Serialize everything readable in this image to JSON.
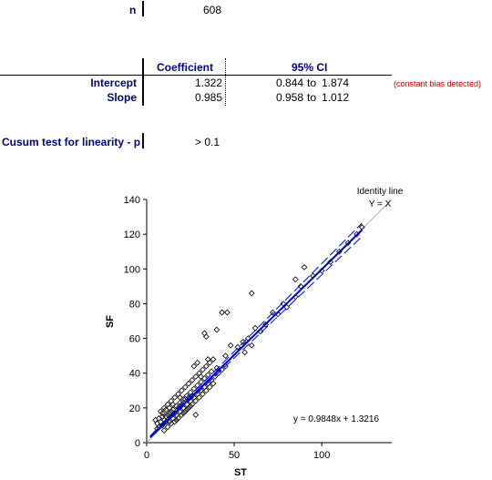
{
  "summary": {
    "n_label": "n",
    "n_value": "608"
  },
  "regression_table": {
    "headers": [
      "Coefficient",
      "95% CI"
    ],
    "rows": [
      {
        "label": "Intercept",
        "coefficient": "1.322",
        "ci_low": "0.844",
        "ci_sep": "to",
        "ci_high": "1.874",
        "note": "(constant bias detected)"
      },
      {
        "label": "Slope",
        "coefficient": "0.985",
        "ci_low": "0.958",
        "ci_sep": "to",
        "ci_high": "1.012",
        "note": ""
      }
    ]
  },
  "cusum": {
    "label": "Cusum test for linearity - p",
    "value": "> 0.1"
  },
  "chart_data": {
    "type": "scatter",
    "xlabel": "ST",
    "ylabel": "SF",
    "xlim": [
      0,
      140
    ],
    "ylim": [
      0,
      140
    ],
    "xticks": [
      0,
      50,
      100
    ],
    "yticks": [
      0,
      20,
      40,
      60,
      80,
      100,
      120,
      140
    ],
    "identity_label_line1": "Identity line",
    "identity_label_line2": "Y = X",
    "equation": "y = 0.9848x + 1.3216",
    "regression": {
      "slope": 0.9848,
      "intercept": 1.3216
    },
    "ci_band": {
      "slope_low": 0.958,
      "slope_high": 1.012,
      "intercept_low": 0.844,
      "intercept_high": 1.874
    },
    "series": [
      {
        "values": [
          [
            5,
            13
          ],
          [
            6,
            8
          ],
          [
            7,
            14
          ],
          [
            8,
            18
          ],
          [
            9,
            10
          ],
          [
            10,
            20
          ],
          [
            10,
            7
          ],
          [
            11,
            15
          ],
          [
            12,
            22
          ],
          [
            12,
            9
          ],
          [
            13,
            17
          ],
          [
            14,
            24
          ],
          [
            14,
            11
          ],
          [
            15,
            19
          ],
          [
            16,
            26
          ],
          [
            16,
            12
          ],
          [
            17,
            21
          ],
          [
            18,
            28
          ],
          [
            18,
            14
          ],
          [
            19,
            23
          ],
          [
            20,
            30
          ],
          [
            20,
            16
          ],
          [
            21,
            25
          ],
          [
            22,
            32
          ],
          [
            22,
            18
          ],
          [
            23,
            27
          ],
          [
            24,
            34
          ],
          [
            24,
            20
          ],
          [
            25,
            29
          ],
          [
            26,
            36
          ],
          [
            26,
            22
          ],
          [
            27,
            31
          ],
          [
            28,
            38
          ],
          [
            28,
            24
          ],
          [
            29,
            33
          ],
          [
            30,
            40
          ],
          [
            30,
            26
          ],
          [
            31,
            35
          ],
          [
            32,
            42
          ],
          [
            32,
            28
          ],
          [
            33,
            37
          ],
          [
            34,
            44
          ],
          [
            34,
            30
          ],
          [
            35,
            39
          ],
          [
            36,
            46
          ],
          [
            36,
            32
          ],
          [
            37,
            41
          ],
          [
            38,
            48
          ],
          [
            38,
            34
          ],
          [
            40,
            43
          ],
          [
            8,
            12
          ],
          [
            9,
            15
          ],
          [
            11,
            12
          ],
          [
            13,
            20
          ],
          [
            15,
            14
          ],
          [
            17,
            16
          ],
          [
            19,
            18
          ],
          [
            21,
            20
          ],
          [
            23,
            22
          ],
          [
            25,
            24
          ],
          [
            27,
            26
          ],
          [
            29,
            28
          ],
          [
            31,
            30
          ],
          [
            33,
            32
          ],
          [
            35,
            34
          ],
          [
            37,
            36
          ],
          [
            39,
            38
          ],
          [
            41,
            40
          ],
          [
            43,
            42
          ],
          [
            45,
            44
          ],
          [
            6,
            11
          ],
          [
            7,
            9
          ],
          [
            9,
            17
          ],
          [
            10,
            13
          ],
          [
            11,
            19
          ],
          [
            12,
            16
          ],
          [
            13,
            12
          ],
          [
            14,
            18
          ],
          [
            15,
            22
          ],
          [
            16,
            17
          ],
          [
            17,
            13
          ],
          [
            18,
            20
          ],
          [
            19,
            26
          ],
          [
            20,
            22
          ],
          [
            21,
            17
          ],
          [
            22,
            25
          ],
          [
            23,
            19
          ],
          [
            24,
            26
          ],
          [
            25,
            21
          ],
          [
            26,
            27
          ],
          [
            28,
            16
          ],
          [
            27,
            44
          ],
          [
            29,
            46
          ],
          [
            31,
            38
          ],
          [
            35,
            48
          ],
          [
            45,
            50
          ],
          [
            48,
            56
          ],
          [
            52,
            55
          ],
          [
            55,
            58
          ],
          [
            58,
            60
          ],
          [
            62,
            66
          ],
          [
            65,
            64
          ],
          [
            68,
            68
          ],
          [
            72,
            75
          ],
          [
            75,
            74
          ],
          [
            78,
            80
          ],
          [
            80,
            78
          ],
          [
            85,
            84
          ],
          [
            88,
            90
          ],
          [
            95,
            96
          ],
          [
            100,
            99
          ],
          [
            105,
            104
          ],
          [
            110,
            110
          ],
          [
            115,
            115
          ],
          [
            120,
            120
          ],
          [
            123,
            124
          ],
          [
            33,
            63
          ],
          [
            34,
            61
          ],
          [
            40,
            65
          ],
          [
            43,
            75
          ],
          [
            46,
            75
          ],
          [
            60,
            86
          ],
          [
            85,
            94
          ],
          [
            90,
            101
          ],
          [
            60,
            56
          ],
          [
            56,
            52
          ]
        ]
      }
    ]
  }
}
